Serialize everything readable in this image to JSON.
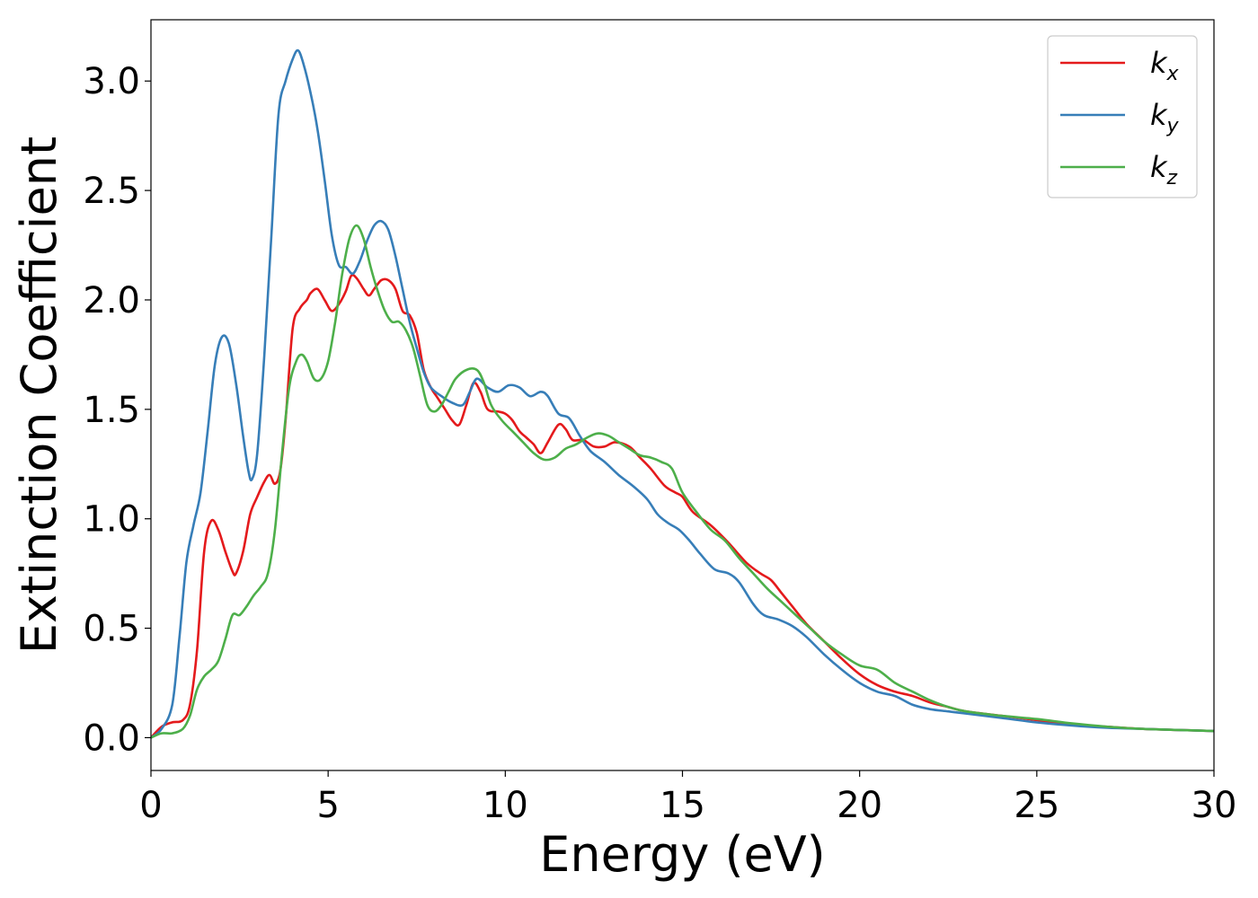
{
  "chart_data": {
    "type": "line",
    "title": "",
    "xlabel": "Energy (eV)",
    "ylabel": "Extinction Coefficient",
    "xlim": [
      0,
      30
    ],
    "ylim": [
      -0.15,
      3.28
    ],
    "xticks": [
      0,
      5,
      10,
      15,
      20,
      25,
      30
    ],
    "xtick_labels": [
      "0",
      "5",
      "10",
      "15",
      "20",
      "25",
      "30"
    ],
    "yticks": [
      0.0,
      0.5,
      1.0,
      1.5,
      2.0,
      2.5,
      3.0
    ],
    "ytick_labels": [
      "0.0",
      "0.5",
      "1.0",
      "1.5",
      "2.0",
      "2.5",
      "3.0"
    ],
    "grid": false,
    "legend_position": "top-right",
    "series": [
      {
        "name": "k_x",
        "label_base": "k",
        "label_sub": "x",
        "color": "#e41a1c",
        "points": [
          [
            0,
            0.0
          ],
          [
            0.3,
            0.05
          ],
          [
            0.6,
            0.07
          ],
          [
            0.9,
            0.08
          ],
          [
            1.1,
            0.15
          ],
          [
            1.3,
            0.4
          ],
          [
            1.5,
            0.85
          ],
          [
            1.7,
            0.99
          ],
          [
            1.9,
            0.95
          ],
          [
            2.1,
            0.85
          ],
          [
            2.3,
            0.76
          ],
          [
            2.4,
            0.75
          ],
          [
            2.6,
            0.85
          ],
          [
            2.8,
            1.02
          ],
          [
            3.0,
            1.1
          ],
          [
            3.2,
            1.17
          ],
          [
            3.35,
            1.2
          ],
          [
            3.5,
            1.16
          ],
          [
            3.65,
            1.22
          ],
          [
            3.8,
            1.45
          ],
          [
            4.0,
            1.87
          ],
          [
            4.2,
            1.96
          ],
          [
            4.4,
            2.0
          ],
          [
            4.5,
            2.03
          ],
          [
            4.7,
            2.05
          ],
          [
            4.9,
            2.0
          ],
          [
            5.1,
            1.95
          ],
          [
            5.3,
            1.98
          ],
          [
            5.5,
            2.04
          ],
          [
            5.65,
            2.11
          ],
          [
            5.8,
            2.1
          ],
          [
            6.0,
            2.05
          ],
          [
            6.15,
            2.02
          ],
          [
            6.3,
            2.05
          ],
          [
            6.5,
            2.09
          ],
          [
            6.7,
            2.09
          ],
          [
            6.9,
            2.05
          ],
          [
            7.1,
            1.95
          ],
          [
            7.3,
            1.93
          ],
          [
            7.5,
            1.85
          ],
          [
            7.7,
            1.68
          ],
          [
            7.9,
            1.6
          ],
          [
            8.1,
            1.55
          ],
          [
            8.3,
            1.5
          ],
          [
            8.5,
            1.45
          ],
          [
            8.7,
            1.43
          ],
          [
            8.9,
            1.52
          ],
          [
            9.1,
            1.62
          ],
          [
            9.3,
            1.58
          ],
          [
            9.5,
            1.5
          ],
          [
            9.8,
            1.49
          ],
          [
            10.0,
            1.48
          ],
          [
            10.2,
            1.45
          ],
          [
            10.4,
            1.4
          ],
          [
            10.6,
            1.37
          ],
          [
            10.8,
            1.34
          ],
          [
            11.0,
            1.3
          ],
          [
            11.2,
            1.35
          ],
          [
            11.5,
            1.43
          ],
          [
            11.7,
            1.41
          ],
          [
            11.9,
            1.36
          ],
          [
            12.2,
            1.36
          ],
          [
            12.5,
            1.33
          ],
          [
            12.8,
            1.33
          ],
          [
            13.1,
            1.35
          ],
          [
            13.5,
            1.33
          ],
          [
            13.8,
            1.28
          ],
          [
            14.1,
            1.23
          ],
          [
            14.5,
            1.15
          ],
          [
            14.8,
            1.12
          ],
          [
            15.0,
            1.1
          ],
          [
            15.3,
            1.03
          ],
          [
            15.8,
            0.97
          ],
          [
            16.3,
            0.89
          ],
          [
            16.8,
            0.8
          ],
          [
            17.2,
            0.75
          ],
          [
            17.5,
            0.72
          ],
          [
            17.8,
            0.66
          ],
          [
            18.1,
            0.6
          ],
          [
            18.5,
            0.52
          ],
          [
            19.0,
            0.44
          ],
          [
            19.5,
            0.36
          ],
          [
            20.0,
            0.29
          ],
          [
            20.5,
            0.24
          ],
          [
            21.0,
            0.21
          ],
          [
            21.5,
            0.19
          ],
          [
            22.0,
            0.16
          ],
          [
            22.5,
            0.14
          ],
          [
            23.0,
            0.12
          ],
          [
            24.0,
            0.1
          ],
          [
            25.0,
            0.08
          ],
          [
            26.0,
            0.06
          ],
          [
            27.0,
            0.05
          ],
          [
            28.0,
            0.04
          ],
          [
            29.0,
            0.035
          ],
          [
            30.0,
            0.03
          ]
        ]
      },
      {
        "name": "k_y",
        "label_base": "k",
        "label_sub": "y",
        "color": "#377eb8",
        "points": [
          [
            0,
            0.0
          ],
          [
            0.3,
            0.04
          ],
          [
            0.6,
            0.15
          ],
          [
            0.8,
            0.45
          ],
          [
            1.0,
            0.8
          ],
          [
            1.2,
            0.97
          ],
          [
            1.4,
            1.12
          ],
          [
            1.6,
            1.4
          ],
          [
            1.8,
            1.7
          ],
          [
            2.0,
            1.83
          ],
          [
            2.2,
            1.8
          ],
          [
            2.4,
            1.62
          ],
          [
            2.6,
            1.38
          ],
          [
            2.75,
            1.22
          ],
          [
            2.85,
            1.18
          ],
          [
            3.0,
            1.3
          ],
          [
            3.2,
            1.75
          ],
          [
            3.4,
            2.3
          ],
          [
            3.6,
            2.85
          ],
          [
            3.8,
            3.0
          ],
          [
            4.0,
            3.1
          ],
          [
            4.15,
            3.14
          ],
          [
            4.3,
            3.08
          ],
          [
            4.5,
            2.95
          ],
          [
            4.7,
            2.78
          ],
          [
            4.9,
            2.55
          ],
          [
            5.1,
            2.3
          ],
          [
            5.3,
            2.16
          ],
          [
            5.5,
            2.15
          ],
          [
            5.7,
            2.12
          ],
          [
            5.9,
            2.18
          ],
          [
            6.1,
            2.27
          ],
          [
            6.3,
            2.34
          ],
          [
            6.5,
            2.36
          ],
          [
            6.7,
            2.32
          ],
          [
            6.9,
            2.2
          ],
          [
            7.1,
            2.05
          ],
          [
            7.3,
            1.9
          ],
          [
            7.5,
            1.78
          ],
          [
            7.7,
            1.67
          ],
          [
            7.9,
            1.6
          ],
          [
            8.2,
            1.56
          ],
          [
            8.5,
            1.53
          ],
          [
            8.8,
            1.52
          ],
          [
            9.0,
            1.58
          ],
          [
            9.2,
            1.64
          ],
          [
            9.5,
            1.6
          ],
          [
            9.8,
            1.58
          ],
          [
            10.1,
            1.61
          ],
          [
            10.4,
            1.6
          ],
          [
            10.7,
            1.56
          ],
          [
            11.0,
            1.58
          ],
          [
            11.2,
            1.56
          ],
          [
            11.5,
            1.48
          ],
          [
            11.8,
            1.46
          ],
          [
            12.1,
            1.38
          ],
          [
            12.4,
            1.31
          ],
          [
            12.8,
            1.26
          ],
          [
            13.2,
            1.2
          ],
          [
            13.6,
            1.15
          ],
          [
            14.0,
            1.09
          ],
          [
            14.3,
            1.02
          ],
          [
            14.6,
            0.98
          ],
          [
            14.9,
            0.95
          ],
          [
            15.2,
            0.9
          ],
          [
            15.5,
            0.84
          ],
          [
            15.9,
            0.77
          ],
          [
            16.3,
            0.75
          ],
          [
            16.6,
            0.71
          ],
          [
            17.0,
            0.61
          ],
          [
            17.3,
            0.56
          ],
          [
            17.7,
            0.54
          ],
          [
            18.1,
            0.51
          ],
          [
            18.5,
            0.46
          ],
          [
            19.0,
            0.38
          ],
          [
            19.5,
            0.31
          ],
          [
            20.0,
            0.25
          ],
          [
            20.5,
            0.21
          ],
          [
            21.0,
            0.19
          ],
          [
            21.5,
            0.15
          ],
          [
            22.0,
            0.13
          ],
          [
            22.5,
            0.12
          ],
          [
            23.0,
            0.11
          ],
          [
            24.0,
            0.09
          ],
          [
            25.0,
            0.07
          ],
          [
            26.0,
            0.055
          ],
          [
            27.0,
            0.045
          ],
          [
            28.0,
            0.04
          ],
          [
            29.0,
            0.035
          ],
          [
            30.0,
            0.03
          ]
        ]
      },
      {
        "name": "k_z",
        "label_base": "k",
        "label_sub": "z",
        "color": "#4daf4a",
        "points": [
          [
            0,
            0.0
          ],
          [
            0.3,
            0.02
          ],
          [
            0.6,
            0.02
          ],
          [
            0.9,
            0.04
          ],
          [
            1.1,
            0.1
          ],
          [
            1.3,
            0.22
          ],
          [
            1.5,
            0.28
          ],
          [
            1.7,
            0.31
          ],
          [
            1.9,
            0.35
          ],
          [
            2.1,
            0.45
          ],
          [
            2.3,
            0.56
          ],
          [
            2.5,
            0.56
          ],
          [
            2.7,
            0.6
          ],
          [
            2.9,
            0.65
          ],
          [
            3.1,
            0.69
          ],
          [
            3.3,
            0.75
          ],
          [
            3.5,
            0.95
          ],
          [
            3.7,
            1.3
          ],
          [
            3.9,
            1.6
          ],
          [
            4.1,
            1.72
          ],
          [
            4.25,
            1.75
          ],
          [
            4.4,
            1.72
          ],
          [
            4.6,
            1.64
          ],
          [
            4.8,
            1.64
          ],
          [
            5.0,
            1.72
          ],
          [
            5.2,
            1.9
          ],
          [
            5.4,
            2.12
          ],
          [
            5.6,
            2.28
          ],
          [
            5.8,
            2.34
          ],
          [
            6.0,
            2.28
          ],
          [
            6.2,
            2.15
          ],
          [
            6.4,
            2.04
          ],
          [
            6.6,
            1.95
          ],
          [
            6.8,
            1.9
          ],
          [
            7.0,
            1.9
          ],
          [
            7.2,
            1.86
          ],
          [
            7.4,
            1.78
          ],
          [
            7.6,
            1.65
          ],
          [
            7.8,
            1.52
          ],
          [
            8.0,
            1.49
          ],
          [
            8.2,
            1.52
          ],
          [
            8.4,
            1.58
          ],
          [
            8.6,
            1.64
          ],
          [
            8.9,
            1.68
          ],
          [
            9.2,
            1.68
          ],
          [
            9.4,
            1.62
          ],
          [
            9.6,
            1.52
          ],
          [
            9.9,
            1.45
          ],
          [
            10.2,
            1.4
          ],
          [
            10.5,
            1.35
          ],
          [
            10.8,
            1.3
          ],
          [
            11.1,
            1.27
          ],
          [
            11.4,
            1.28
          ],
          [
            11.7,
            1.32
          ],
          [
            12.0,
            1.34
          ],
          [
            12.3,
            1.37
          ],
          [
            12.6,
            1.39
          ],
          [
            12.9,
            1.38
          ],
          [
            13.2,
            1.35
          ],
          [
            13.5,
            1.32
          ],
          [
            13.8,
            1.29
          ],
          [
            14.1,
            1.28
          ],
          [
            14.4,
            1.26
          ],
          [
            14.7,
            1.23
          ],
          [
            15.0,
            1.12
          ],
          [
            15.4,
            1.03
          ],
          [
            15.8,
            0.95
          ],
          [
            16.2,
            0.9
          ],
          [
            16.6,
            0.82
          ],
          [
            17.0,
            0.75
          ],
          [
            17.4,
            0.68
          ],
          [
            17.8,
            0.62
          ],
          [
            18.2,
            0.56
          ],
          [
            18.6,
            0.5
          ],
          [
            19.0,
            0.44
          ],
          [
            19.5,
            0.38
          ],
          [
            20.0,
            0.33
          ],
          [
            20.5,
            0.31
          ],
          [
            21.0,
            0.25
          ],
          [
            21.5,
            0.21
          ],
          [
            22.0,
            0.17
          ],
          [
            22.5,
            0.14
          ],
          [
            23.0,
            0.12
          ],
          [
            24.0,
            0.1
          ],
          [
            25.0,
            0.085
          ],
          [
            26.0,
            0.065
          ],
          [
            27.0,
            0.05
          ],
          [
            28.0,
            0.04
          ],
          [
            29.0,
            0.035
          ],
          [
            30.0,
            0.03
          ]
        ]
      }
    ]
  }
}
